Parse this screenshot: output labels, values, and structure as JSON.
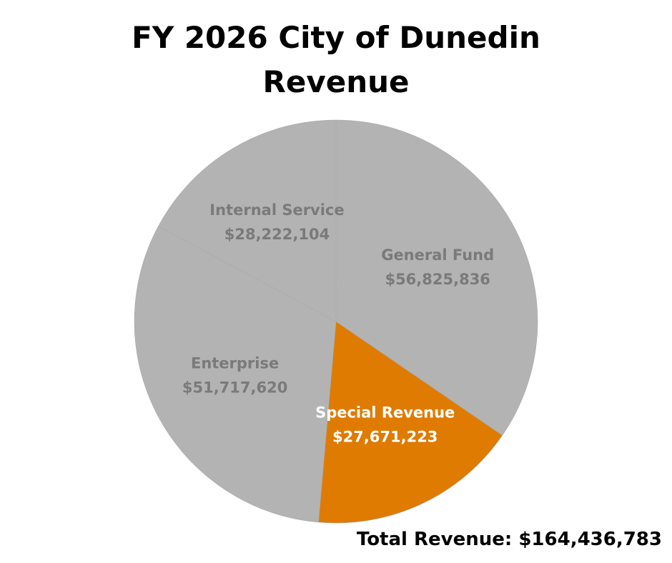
{
  "chart_data": {
    "type": "pie",
    "title": "FY 2026 City of Dunedin Revenue",
    "categories": [
      "General Fund",
      "Special Revenue",
      "Enterprise",
      "Internal Service"
    ],
    "values": [
      56825836,
      27671223,
      51717620,
      28222104
    ],
    "value_labels": [
      "$56,825,836",
      "$27,671,223",
      "$51,717,620",
      "$28,222,104"
    ],
    "colors": [
      "#b3b3b3",
      "#df7b00",
      "#b3b3b3",
      "#b3b3b3"
    ],
    "label_colors": [
      "#7a7a7a",
      "#ffffff",
      "#7a7a7a",
      "#7a7a7a"
    ],
    "annotation": "Total Revenue: $164,436,783"
  }
}
